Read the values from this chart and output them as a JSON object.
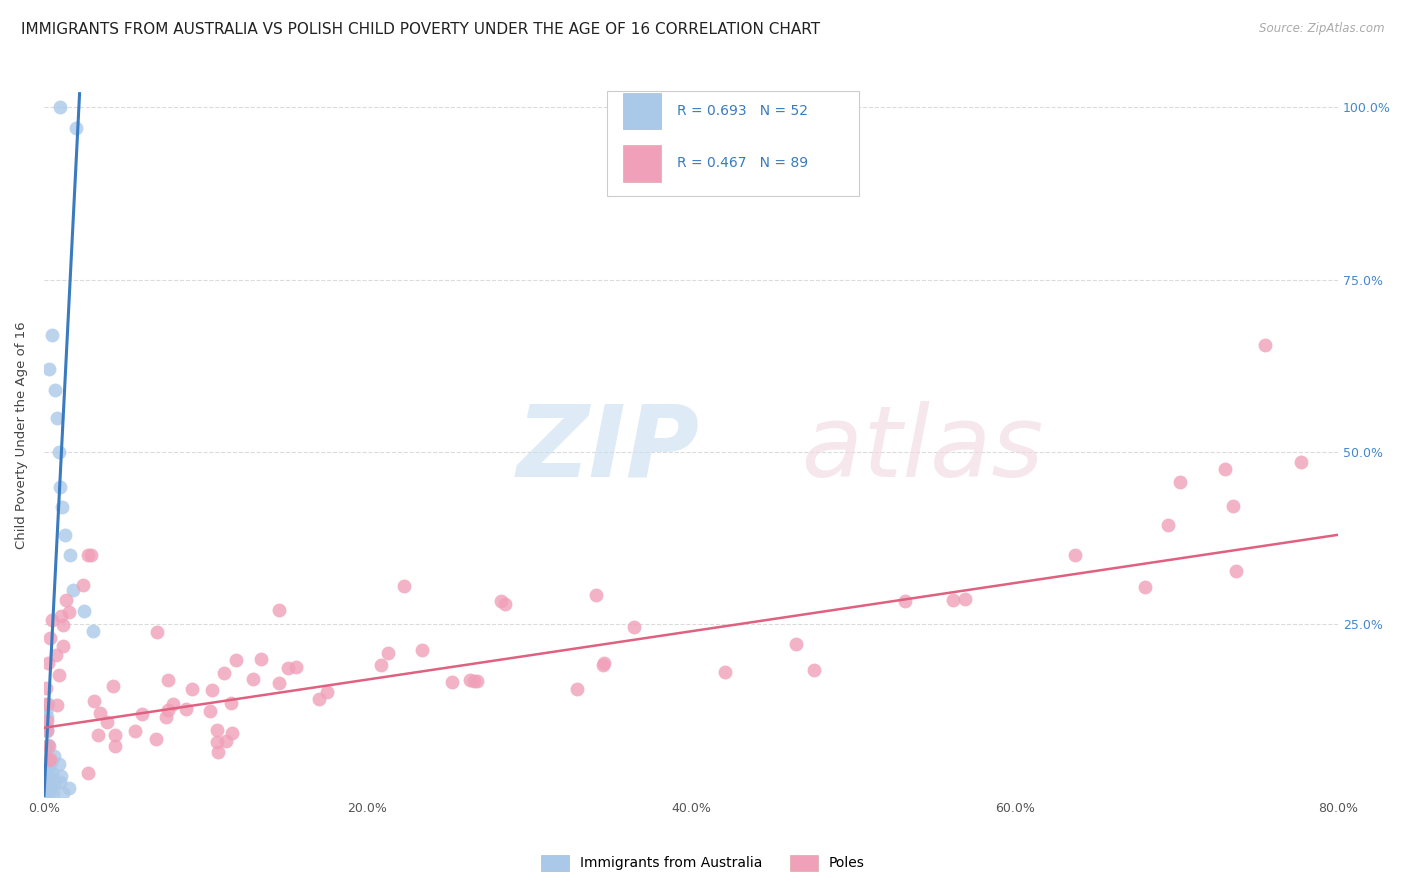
{
  "title": "IMMIGRANTS FROM AUSTRALIA VS POLISH CHILD POVERTY UNDER THE AGE OF 16 CORRELATION CHART",
  "source": "Source: ZipAtlas.com",
  "ylabel": "Child Poverty Under the Age of 16",
  "xlim": [
    0.0,
    0.8
  ],
  "ylim": [
    0.0,
    1.05
  ],
  "xtick_labels": [
    "0.0%",
    "20.0%",
    "40.0%",
    "60.0%",
    "80.0%"
  ],
  "xtick_vals": [
    0.0,
    0.2,
    0.4,
    0.6,
    0.8
  ],
  "ytick_labels": [
    "25.0%",
    "50.0%",
    "75.0%",
    "100.0%"
  ],
  "ytick_vals": [
    0.25,
    0.5,
    0.75,
    1.0
  ],
  "blue_color": "#aac8e8",
  "blue_line_color": "#3a7abf",
  "pink_color": "#f0a0b8",
  "pink_line_color": "#e06080",
  "right_axis_color": "#4488cc",
  "grid_color": "#cccccc",
  "background_color": "#ffffff",
  "title_fontsize": 11,
  "axis_label_fontsize": 9.5,
  "tick_fontsize": 9,
  "legend_label1": "Immigrants from Australia",
  "legend_label2": "Poles",
  "legend_r1": "R = 0.693",
  "legend_n1": "N = 52",
  "legend_r2": "R = 0.467",
  "legend_n2": "N = 89"
}
